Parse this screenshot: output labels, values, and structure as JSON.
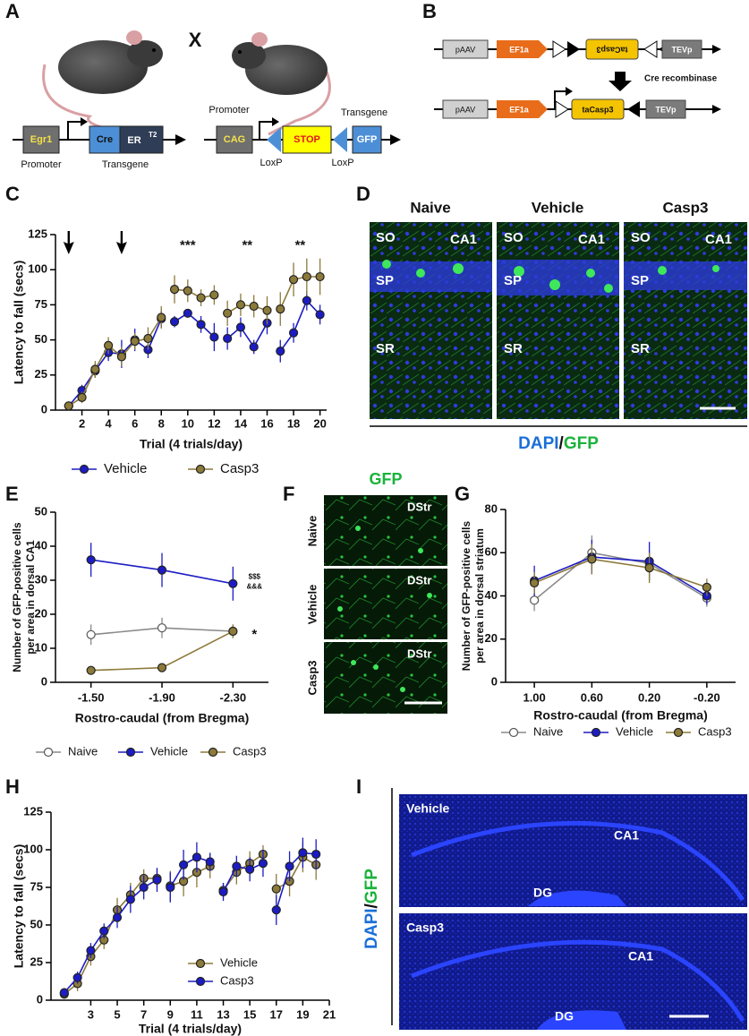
{
  "panel_letters": [
    "A",
    "B",
    "C",
    "D",
    "E",
    "F",
    "G",
    "H",
    "I"
  ],
  "panel_a": {
    "cross": "X",
    "egr1": "Egr1",
    "cre": "Cre",
    "er": "ER",
    "er_sup": "T2",
    "promoter_1": "Promoter",
    "transgene_1": "Transgene",
    "promoter_2": "Promoter",
    "cag": "CAG",
    "stop": "STOP",
    "gfp": "GFP",
    "transgene_2": "Transgene",
    "loxp_1": "LoxP",
    "loxp_2": "LoxP"
  },
  "panel_b": {
    "row1": [
      "pAAV",
      "EF1a",
      "taCasp3",
      "TEVp"
    ],
    "arrow_label": "Cre recombinase",
    "row2": [
      "pAAV",
      "EF1a",
      "taCasp3",
      "TEVp"
    ]
  },
  "panel_d": {
    "columns": [
      {
        "title": "Naive",
        "labels": [
          "SO",
          "CA1",
          "SP",
          "SR"
        ]
      },
      {
        "title": "Vehicle",
        "labels": [
          "SO",
          "CA1",
          "SP",
          "SR"
        ]
      },
      {
        "title": "Casp3",
        "labels": [
          "SO",
          "CA1",
          "SP",
          "SR"
        ]
      }
    ],
    "stain": [
      "DAPI",
      "/",
      "GFP"
    ]
  },
  "panel_f": {
    "title": "GFP",
    "rows": [
      {
        "name": "Naive",
        "region": "DStr"
      },
      {
        "name": "Vehicle",
        "region": "DStr"
      },
      {
        "name": "Casp3",
        "region": "DStr"
      }
    ]
  },
  "panel_i": {
    "stain": [
      "DAPI",
      "/",
      "GFP"
    ],
    "images": [
      {
        "name": "Vehicle",
        "labels": [
          "CA1",
          "DG"
        ]
      },
      {
        "name": "Casp3",
        "labels": [
          "CA1",
          "DG"
        ]
      }
    ]
  },
  "chart_data": [
    {
      "type": "line",
      "xlabel": "Trial (4 trials/day)",
      "ylabel": "Latency to fall (secs)",
      "x": [
        1,
        2,
        3,
        4,
        5,
        6,
        7,
        8,
        null,
        9,
        10,
        11,
        12,
        null,
        13,
        14,
        15,
        16,
        null,
        17,
        18,
        19,
        20
      ],
      "xlim": [
        0,
        20.5
      ],
      "xticks": [
        2,
        4,
        6,
        8,
        10,
        12,
        14,
        16,
        18,
        20
      ],
      "ylim": [
        0,
        125
      ],
      "yticks": [
        0,
        25,
        50,
        75,
        100,
        125
      ],
      "series": [
        {
          "name": "Vehicle",
          "color": "#1c1cc4",
          "values": [
            3,
            14,
            28,
            41,
            40,
            50,
            43,
            65,
            null,
            63,
            69,
            61,
            52,
            null,
            51,
            59,
            45,
            62,
            null,
            42,
            55,
            78,
            68
          ],
          "errors": [
            2,
            4,
            5,
            6,
            10,
            8,
            6,
            6,
            null,
            4,
            3,
            6,
            10,
            null,
            8,
            7,
            5,
            8,
            null,
            8,
            7,
            7,
            7
          ]
        },
        {
          "name": "Casp3",
          "color": "#8c7a3a",
          "values": [
            3,
            9,
            29,
            46,
            38,
            49,
            51,
            66,
            null,
            86,
            85,
            80,
            82,
            null,
            69,
            75,
            74,
            71,
            null,
            72,
            93,
            95,
            95
          ],
          "errors": [
            2,
            4,
            6,
            6,
            7,
            6,
            8,
            8,
            null,
            10,
            8,
            6,
            7,
            null,
            9,
            8,
            8,
            10,
            null,
            12,
            12,
            13,
            13
          ]
        }
      ],
      "arrows_at": [
        1,
        5
      ],
      "annotations": [
        {
          "text": "***",
          "x": 10,
          "y": 117
        },
        {
          "text": "**",
          "x": 14.5,
          "y": 117
        },
        {
          "text": "**",
          "x": 18.5,
          "y": 117
        }
      ],
      "legend": "bottom"
    },
    {
      "type": "line",
      "xlabel": "Rostro-caudal (from Bregma)",
      "ylabel": [
        "Number of GFP-positive cells",
        "per area in dorsal CA1"
      ],
      "categories": [
        "-1.50",
        "-1.90",
        "-2.30"
      ],
      "ylim": [
        0,
        50
      ],
      "yticks": [
        0,
        10,
        20,
        30,
        40,
        50
      ],
      "series": [
        {
          "name": "Naive",
          "color": "#8a8a8a",
          "marker_color": "#ffffff",
          "values": [
            14,
            16,
            15
          ],
          "errors": [
            3,
            3,
            2
          ]
        },
        {
          "name": "Vehicle",
          "color": "#1c1cc4",
          "values": [
            36,
            33,
            29
          ],
          "errors": [
            5,
            5,
            5
          ]
        },
        {
          "name": "Casp3",
          "color": "#8c7a3a",
          "values": [
            3.5,
            4.3,
            15
          ],
          "errors": [
            1,
            1,
            2
          ]
        }
      ],
      "annotations": [
        {
          "text": "$$$",
          "category": "-2.30",
          "y": 31
        },
        {
          "text": "&&&",
          "category": "-2.30",
          "y": 28
        },
        {
          "text": "*",
          "category": "-2.30",
          "y": 14
        }
      ],
      "legend": "bottom"
    },
    {
      "type": "line",
      "xlabel": "Rostro-caudal (from Bregma)",
      "ylabel": [
        "Number of GFP-positive cells",
        "per area in dorsal striatum"
      ],
      "categories": [
        "1.00",
        "0.60",
        "0.20",
        "-0.20"
      ],
      "ylim": [
        0,
        80
      ],
      "yticks": [
        0,
        20,
        40,
        60,
        80
      ],
      "series": [
        {
          "name": "Naive",
          "color": "#8a8a8a",
          "marker_color": "#ffffff",
          "values": [
            38,
            60,
            55,
            39
          ],
          "errors": [
            5,
            8,
            6,
            4
          ]
        },
        {
          "name": "Vehicle",
          "color": "#1c1cc4",
          "values": [
            47,
            58,
            56,
            40
          ],
          "errors": [
            7,
            8,
            9,
            4
          ]
        },
        {
          "name": "Casp3",
          "color": "#8c7a3a",
          "values": [
            46,
            57,
            53,
            44
          ],
          "errors": [
            5,
            7,
            7,
            4
          ]
        }
      ],
      "legend": "bottom"
    },
    {
      "type": "line",
      "xlabel": "Trial  (4 trials/day)",
      "ylabel": "Latency to fall (secs)",
      "x": [
        1,
        2,
        3,
        4,
        5,
        6,
        7,
        8,
        null,
        9,
        10,
        11,
        12,
        null,
        13,
        14,
        15,
        16,
        null,
        17,
        18,
        19,
        20
      ],
      "xlim": [
        0,
        21
      ],
      "xticks": [
        3,
        5,
        7,
        9,
        11,
        13,
        15,
        17,
        19,
        21
      ],
      "ylim": [
        0,
        125
      ],
      "yticks": [
        0,
        25,
        50,
        75,
        100,
        125
      ],
      "series": [
        {
          "name": "Vehicle",
          "color": "#8c7a3a",
          "values": [
            4,
            11,
            29,
            40,
            60,
            70,
            81,
            81,
            null,
            76,
            79,
            85,
            89,
            null,
            73,
            85,
            91,
            97,
            null,
            74,
            79,
            95,
            90
          ],
          "errors": [
            3,
            5,
            6,
            6,
            8,
            8,
            6,
            6,
            null,
            10,
            10,
            10,
            8,
            null,
            5,
            8,
            8,
            6,
            null,
            10,
            10,
            10,
            10
          ]
        },
        {
          "name": "Casp3",
          "color": "#1c1cc4",
          "values": [
            5,
            15,
            33,
            46,
            55,
            67,
            75,
            80,
            null,
            75,
            90,
            95,
            92,
            null,
            72,
            89,
            87,
            91,
            null,
            60,
            89,
            98,
            97
          ],
          "errors": [
            3,
            4,
            5,
            5,
            7,
            9,
            8,
            8,
            null,
            10,
            10,
            10,
            6,
            null,
            6,
            7,
            8,
            9,
            null,
            10,
            10,
            10,
            10
          ]
        }
      ],
      "legend": "lower right"
    }
  ]
}
